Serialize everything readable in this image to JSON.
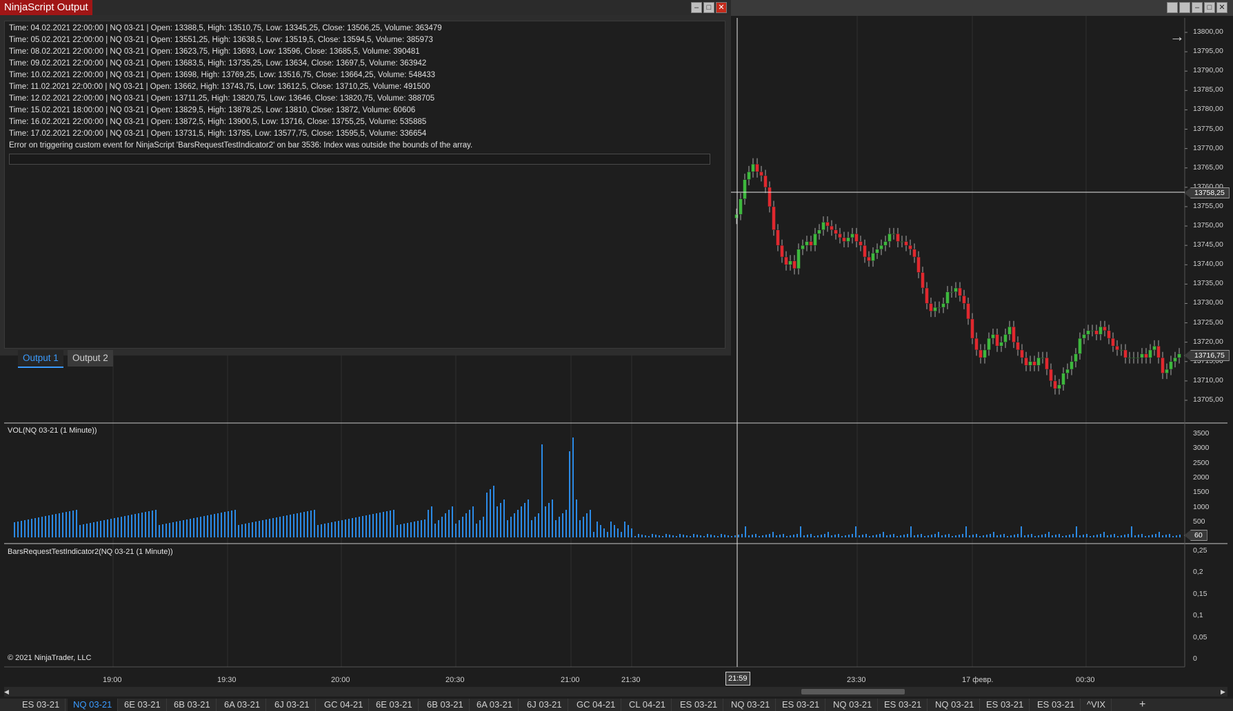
{
  "output_window": {
    "title": "NinjaScript Output",
    "lines": [
      "Time: 04.02.2021 22:00:00 | NQ 03-21 | Open: 13388,5, High: 13510,75, Low: 13345,25, Close: 13506,25, Volume: 363479",
      "Time: 05.02.2021 22:00:00 | NQ 03-21 | Open: 13551,25, High: 13638,5, Low: 13519,5, Close: 13594,5, Volume: 385973",
      "Time: 08.02.2021 22:00:00 | NQ 03-21 | Open: 13623,75, High: 13693, Low: 13596, Close: 13685,5, Volume: 390481",
      "Time: 09.02.2021 22:00:00 | NQ 03-21 | Open: 13683,5, High: 13735,25, Low: 13634, Close: 13697,5, Volume: 363942",
      "Time: 10.02.2021 22:00:00 | NQ 03-21 | Open: 13698, High: 13769,25, Low: 13516,75, Close: 13664,25, Volume: 548433",
      "Time: 11.02.2021 22:00:00 | NQ 03-21 | Open: 13662, High: 13743,75, Low: 13612,5, Close: 13710,25, Volume: 491500",
      "Time: 12.02.2021 22:00:00 | NQ 03-21 | Open: 13711,25, High: 13820,75, Low: 13646, Close: 13820,75, Volume: 388705",
      "Time: 15.02.2021 18:00:00 | NQ 03-21 | Open: 13829,5, High: 13878,25, Low: 13810, Close: 13872, Volume: 60606",
      "Time: 16.02.2021 22:00:00 | NQ 03-21 | Open: 13872,5, High: 13900,5, Low: 13716, Close: 13755,25, Volume: 535885",
      "Time: 17.02.2021 22:00:00 | NQ 03-21 | Open: 13731,5, High: 13785, Low: 13577,75, Close: 13595,5, Volume: 336654",
      "Error on triggering custom event for NinjaScript 'BarsRequestTestIndicator2' on bar 3536: Index was outside the bounds of the array."
    ],
    "tabs": [
      "Output 1",
      "Output 2"
    ],
    "active_tab": "Output 1"
  },
  "chart": {
    "price_axis": [
      "13800,00",
      "13795,00",
      "13790,00",
      "13785,00",
      "13780,00",
      "13775,00",
      "13770,00",
      "13765,00",
      "13760,00",
      "13755,00",
      "13750,00",
      "13745,00",
      "13740,00",
      "13735,00",
      "13730,00",
      "13725,00",
      "13720,00",
      "13715,00",
      "13710,00",
      "13705,00"
    ],
    "price_tags": {
      "crosshair": "13758,25",
      "last": "13716,75"
    },
    "volume_label": "VOL(NQ 03-21 (1 Minute))",
    "volume_axis": [
      "3500",
      "3000",
      "2500",
      "2000",
      "1500",
      "1000",
      "500"
    ],
    "volume_tag": "60",
    "indicator_label": "BarsRequestTestIndicator2(NQ 03-21 (1 Minute))",
    "indicator_axis": [
      "0,25",
      "0,2",
      "0,15",
      "0,1",
      "0,05",
      "0"
    ],
    "copyright": "© 2021 NinjaTrader, LLC",
    "time_axis": [
      "19:00",
      "19:30",
      "20:00",
      "20:30",
      "21:00",
      "21:30",
      "23:30",
      "17 февр.",
      "00:30"
    ],
    "crosshair_time": "21:59",
    "colors": {
      "up": "#3db83d",
      "down": "#e0282e",
      "volume": "#2b8ae6",
      "accent": "#3a9bff"
    }
  },
  "instrument_tabs": [
    "ES 03-21",
    "NQ 03-21",
    "6E 03-21",
    "6B 03-21",
    "6A 03-21",
    "6J 03-21",
    "GC 04-21",
    "6E 03-21",
    "6B 03-21",
    "6A 03-21",
    "6J 03-21",
    "GC 04-21",
    "CL 04-21",
    "ES 03-21",
    "NQ 03-21",
    "ES 03-21",
    "NQ 03-21",
    "ES 03-21",
    "NQ 03-21",
    "ES 03-21",
    "ES 03-21",
    "^VIX"
  ],
  "active_instrument_tab": 1,
  "add_tab_label": "+"
}
